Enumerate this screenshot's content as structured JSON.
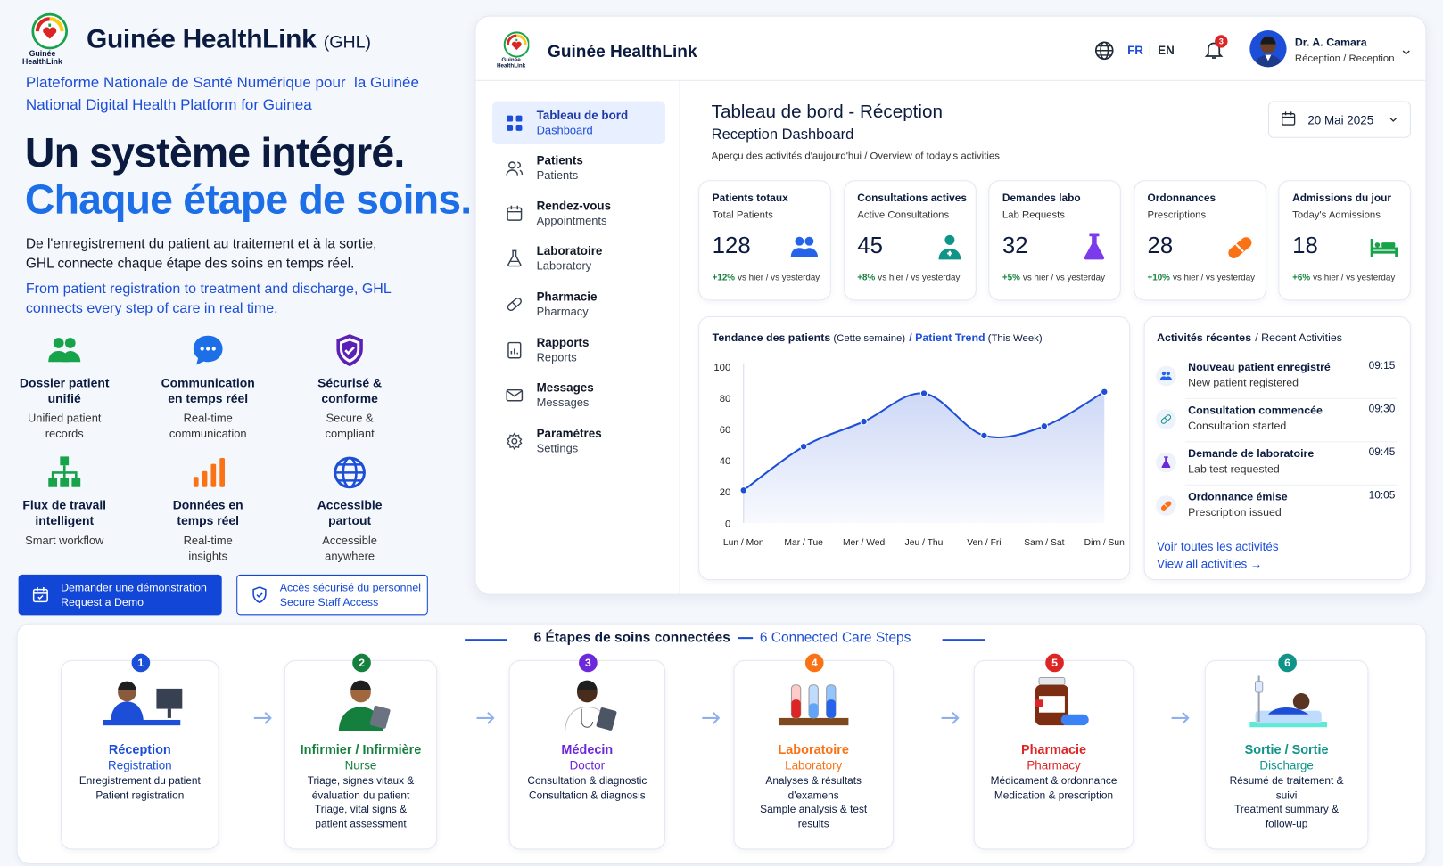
{
  "brand": {
    "name": "Guinée HealthLink",
    "abbr": "(GHL)",
    "logo_text": "Guinée HealthLink"
  },
  "tagline": [
    "Plateforme Nationale de Santé Numérique pour  la Guinée",
    "National Digital Health Platform for Guinea"
  ],
  "headline": [
    "Un système intégré.",
    "Chaque étape de soins."
  ],
  "intro_fr": "De l'enregistrement du patient au traitement et à la sortie, GHL connecte chaque étape des soins en temps réel.",
  "intro_en": "From patient registration to treatment and discharge, GHL connects every step of care in real time.",
  "features": [
    {
      "title": "Dossier patient unifié",
      "subtitle": "Unified patient records"
    },
    {
      "title": "Communication en temps réel",
      "subtitle": "Real-time communication"
    },
    {
      "title": "Sécurisé & conforme",
      "subtitle": "Secure & compliant"
    },
    {
      "title": "Flux de travail intelligent",
      "subtitle": "Smart workflow"
    },
    {
      "title": "Données en temps réel",
      "subtitle": "Real-time insights"
    },
    {
      "title": "Accessible partout",
      "subtitle": "Accessible anywhere"
    }
  ],
  "buttons": [
    {
      "label": "Demander une démonstration",
      "sublabel": "Request a Demo"
    },
    {
      "label": "Accès sécurisé du personnel",
      "sublabel": "Secure Staff Access"
    }
  ],
  "app": {
    "brand": "Guinée HealthLink",
    "languages": [
      "FR",
      "EN"
    ],
    "notifications": 3,
    "user": {
      "name": "Dr. A. Camara",
      "role": "Réception / Reception"
    },
    "nav": [
      {
        "label": "Tableau de bord",
        "sublabel": "Dashboard"
      },
      {
        "label": "Patients",
        "sublabel": "Patients"
      },
      {
        "label": "Rendez-vous",
        "sublabel": "Appointments"
      },
      {
        "label": "Laboratoire",
        "sublabel": "Laboratory"
      },
      {
        "label": "Pharmacie",
        "sublabel": "Pharmacy"
      },
      {
        "label": "Rapports",
        "sublabel": "Reports"
      },
      {
        "label": "Messages",
        "sublabel": "Messages"
      },
      {
        "label": "Paramètres",
        "sublabel": "Settings"
      }
    ],
    "page_title": "Tableau de bord - Réception",
    "page_subtitle": "Reception Dashboard",
    "page_desc": "Aperçu des activités d'aujourd'hui / Overview of today's activities",
    "date": "20 Mai 2025",
    "stats": [
      {
        "label": "Patients totaux",
        "sublabel": "Total Patients",
        "value": 128,
        "change": "+12%",
        "change_note": "vs hier / vs yesterday",
        "color": "#2563eb"
      },
      {
        "label": "Consultations actives",
        "sublabel": "Active Consultations",
        "value": 45,
        "change": "+8%",
        "change_note": "vs hier / vs yesterday",
        "color": "#0f9488"
      },
      {
        "label": "Demandes labo",
        "sublabel": "Lab Requests",
        "value": 32,
        "change": "+5%",
        "change_note": "vs hier / vs yesterday",
        "color": "#7c3aed"
      },
      {
        "label": "Ordonnances",
        "sublabel": "Prescriptions",
        "value": 28,
        "change": "+10%",
        "change_note": "vs hier / vs yesterday",
        "color": "#f97316"
      },
      {
        "label": "Admissions du jour",
        "sublabel": "Today's Admissions",
        "value": 18,
        "change": "+6%",
        "change_note": "vs hier / vs yesterday",
        "color": "#16a34a"
      }
    ],
    "activities": {
      "title": "Activités récentes",
      "title_en": "/ Recent Activities",
      "items": [
        {
          "title": "Nouveau patient enregistré",
          "subtitle": "New patient registered",
          "time": "09:15"
        },
        {
          "title": "Consultation commencée",
          "subtitle": "Consultation started",
          "time": "09:30"
        },
        {
          "title": "Demande de laboratoire",
          "subtitle": "Lab test requested",
          "time": "09:45"
        },
        {
          "title": "Ordonnance émise",
          "subtitle": "Prescription issued",
          "time": "10:05"
        }
      ],
      "link": "Voir toutes les activités",
      "link_en": "View all activities →"
    }
  },
  "chart_data": {
    "type": "line",
    "title": "Tendance des patients",
    "title_note": "(Cette semaine)",
    "title_en": "/ Patient Trend",
    "title_en_note": "(This Week)",
    "categories": [
      "Lun / Mon",
      "Mar / Tue",
      "Mer / Wed",
      "Jeu / Thu",
      "Ven / Fri",
      "Sam / Sat",
      "Dim / Sun"
    ],
    "values": [
      21,
      49,
      65,
      83,
      56,
      62,
      84
    ],
    "ylim": [
      0,
      100
    ],
    "yticks": [
      0,
      20,
      40,
      60,
      80,
      100
    ],
    "grid": false,
    "color": "#1d4ed8"
  },
  "steps": {
    "title": "6 Étapes de soins connectées",
    "title_en": "6 Connected Care Steps",
    "items": [
      {
        "number": 1,
        "title": "Réception",
        "title_en": "Registration",
        "desc_fr": "Enregistrement du patient",
        "desc_en": "Patient registration",
        "color": "#1d4ed8"
      },
      {
        "number": 2,
        "title": "Infirmier / Infirmière",
        "title_en": "Nurse",
        "desc_fr": "Triage, signes vitaux & évaluation du patient",
        "desc_en": "Triage, vital signs & patient assessment",
        "color": "#15803d"
      },
      {
        "number": 3,
        "title": "Médecin",
        "title_en": "Doctor",
        "desc_fr": "Consultation & diagnostic",
        "desc_en": "Consultation & diagnosis",
        "color": "#6d28d9"
      },
      {
        "number": 4,
        "title": "Laboratoire",
        "title_en": "Laboratory",
        "desc_fr": "Analyses & résultats d'examens",
        "desc_en": "Sample analysis & test results",
        "color": "#f97316"
      },
      {
        "number": 5,
        "title": "Pharmacie",
        "title_en": "Pharmacy",
        "desc_fr": "Médicament & ordonnance",
        "desc_en": "Medication & prescription",
        "color": "#dc2626"
      },
      {
        "number": 6,
        "title": "Sortie / Sortie",
        "title_en": "Discharge",
        "desc_fr": "Résumé de traitement & suivi",
        "desc_en": "Treatment summary & follow-up",
        "color": "#0e9488"
      }
    ]
  }
}
